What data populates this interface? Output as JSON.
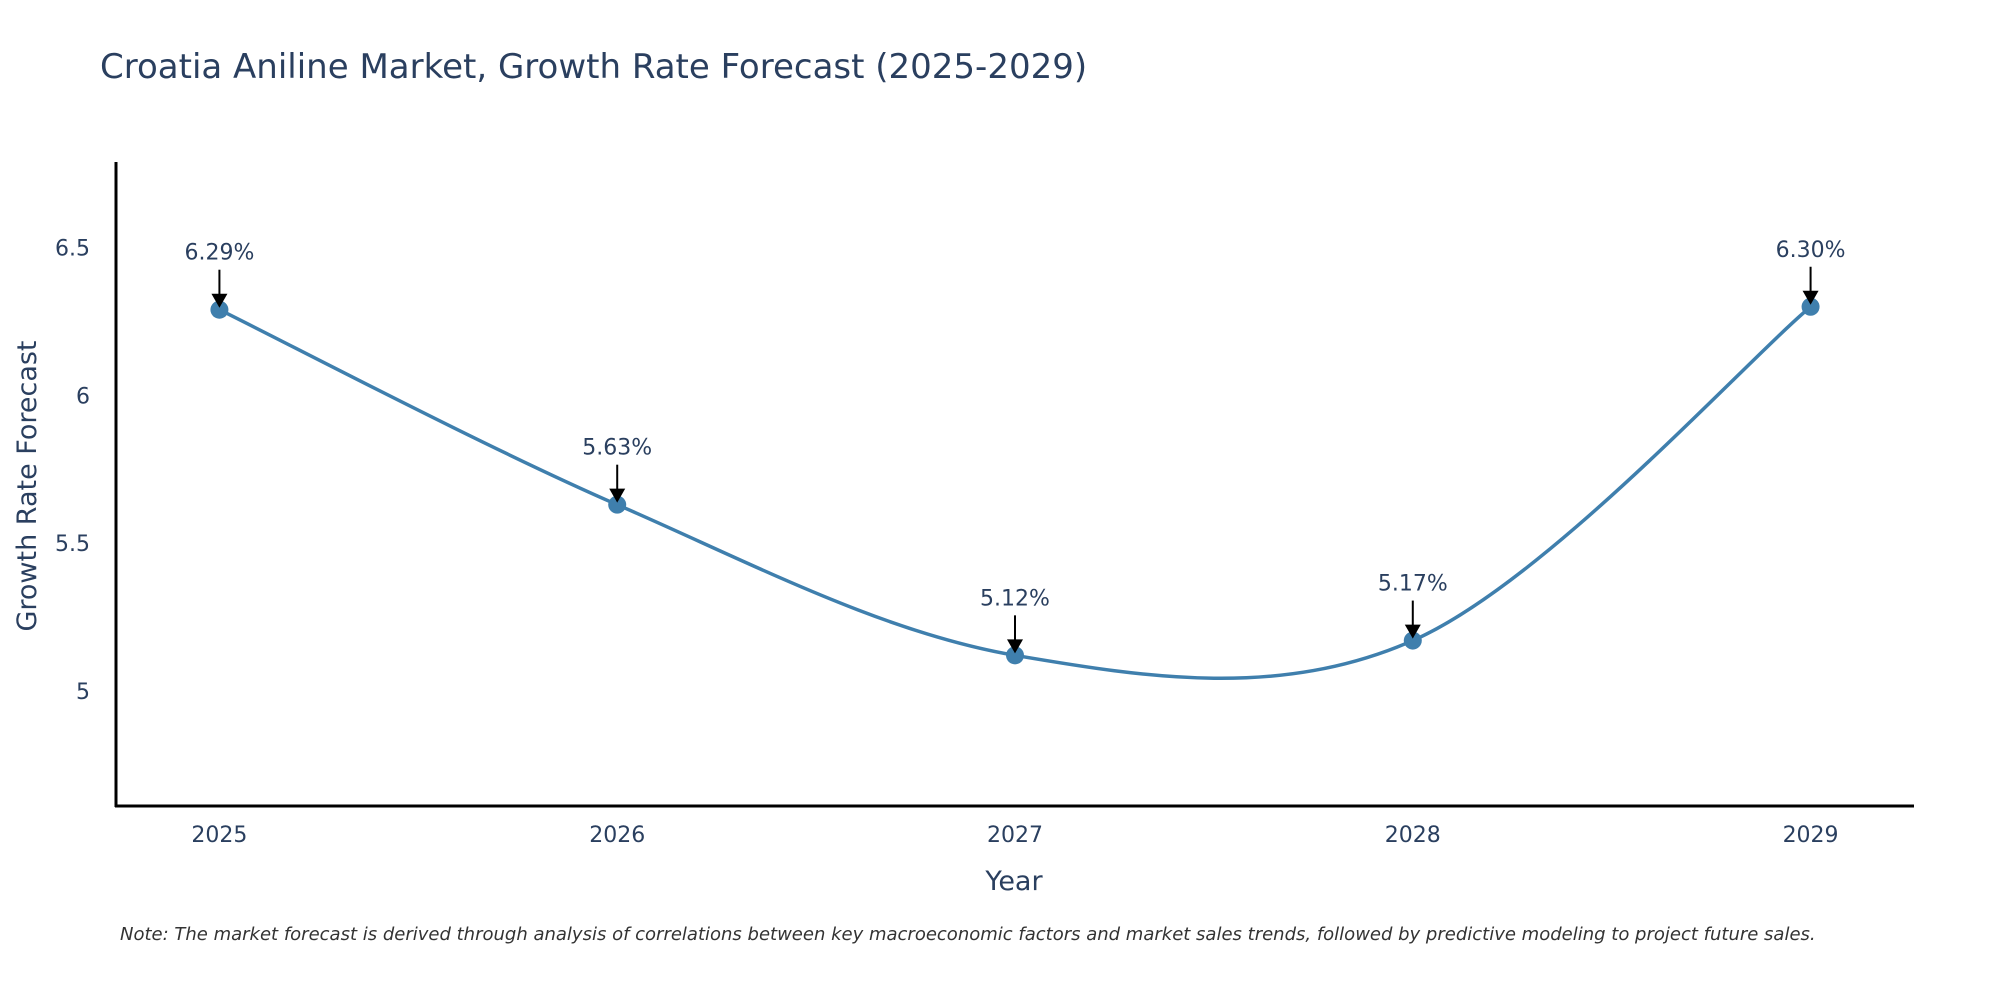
{
  "chart_data": {
    "type": "line",
    "title": "Croatia Aniline Market, Growth Rate Forecast (2025-2029)",
    "xlabel": "Year",
    "ylabel": "Growth Rate Forecast",
    "categories": [
      "2025",
      "2026",
      "2027",
      "2028",
      "2029"
    ],
    "series": [
      {
        "name": "Growth Rate Forecast",
        "values": [
          6.29,
          5.63,
          5.12,
          5.17,
          6.3
        ],
        "labels": [
          "6.29%",
          "5.63%",
          "5.12%",
          "5.17%",
          "6.30%"
        ],
        "color": "#3f7fad"
      }
    ],
    "ylim": [
      4.61,
      6.79
    ],
    "yticks": [
      5,
      5.5,
      6,
      6.5
    ],
    "ytick_labels": [
      "5",
      "5.5",
      "6",
      "6.5"
    ],
    "xlim": [
      -0.26,
      4.26
    ],
    "line_shape": "spline",
    "grid": false,
    "note": "Note: The market forecast is derived through analysis of correlations between key macroeconomic factors and market sales trends, followed by predictive modeling to project future sales."
  },
  "colors": {
    "axis": "#000000",
    "text": "#2a3f5f",
    "line": "#3f7fad",
    "marker": "#3f7fad",
    "arrow": "#000000"
  }
}
